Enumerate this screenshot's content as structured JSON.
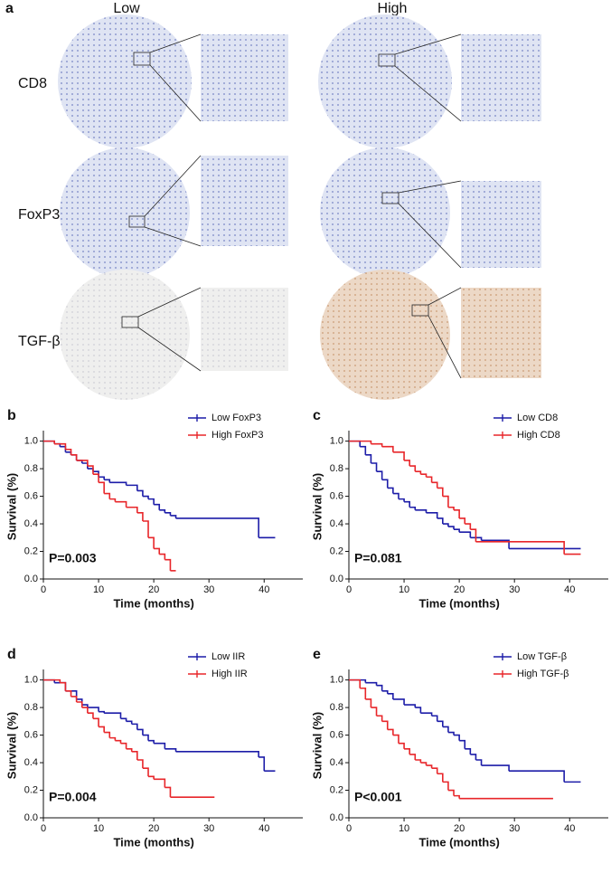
{
  "panel_a": {
    "label": "a",
    "columns": [
      "Low",
      "High"
    ],
    "rows": [
      "CD8",
      "FoxP3",
      "TGF-β"
    ]
  },
  "chart_data": [
    {
      "type": "step",
      "label": "b",
      "xlabel": "Time (months)",
      "ylabel": "Survival (%)",
      "annotation": "P=0.003",
      "xlim": [
        0,
        47
      ],
      "xticks": [
        0,
        10,
        20,
        30,
        40
      ],
      "ylim": [
        0,
        1.05
      ],
      "yticks": [
        {
          "value": 0,
          "label": "0.0"
        },
        {
          "value": 0.2,
          "label": "0.2"
        },
        {
          "value": 0.4,
          "label": "0.4"
        },
        {
          "value": 0.6,
          "label": "0.6"
        },
        {
          "value": 0.8,
          "label": "0.8"
        },
        {
          "value": 1,
          "label": "1.0"
        }
      ],
      "series": [
        {
          "name": "Low FoxP3",
          "color": "#1c1ca8",
          "x": [
            0,
            2,
            3,
            4,
            5,
            6,
            7,
            8,
            9,
            10,
            11,
            12,
            15,
            17,
            18,
            19,
            20,
            21,
            22,
            23,
            24,
            39,
            42
          ],
          "values": [
            1,
            0.98,
            0.96,
            0.92,
            0.9,
            0.86,
            0.84,
            0.8,
            0.78,
            0.74,
            0.72,
            0.7,
            0.68,
            0.64,
            0.6,
            0.58,
            0.54,
            0.5,
            0.48,
            0.46,
            0.44,
            0.3,
            0.3
          ]
        },
        {
          "name": "High FoxP3",
          "color": "#e8262a",
          "x": [
            0,
            2,
            4,
            5,
            6,
            8,
            9,
            10,
            11,
            12,
            13,
            15,
            17,
            18,
            19,
            20,
            21,
            22,
            23,
            24
          ],
          "values": [
            1,
            0.98,
            0.94,
            0.9,
            0.86,
            0.82,
            0.76,
            0.7,
            0.62,
            0.58,
            0.56,
            0.52,
            0.48,
            0.42,
            0.3,
            0.22,
            0.18,
            0.14,
            0.06,
            0.06
          ]
        }
      ]
    },
    {
      "type": "step",
      "label": "c",
      "xlabel": "Time (months)",
      "ylabel": "Survival (%)",
      "annotation": "P=0.081",
      "xlim": [
        0,
        47
      ],
      "xticks": [
        0,
        10,
        20,
        30,
        40
      ],
      "ylim": [
        0,
        1.05
      ],
      "yticks": [
        {
          "value": 0,
          "label": "0.0"
        },
        {
          "value": 0.2,
          "label": "0.2"
        },
        {
          "value": 0.4,
          "label": "0.4"
        },
        {
          "value": 0.6,
          "label": "0.6"
        },
        {
          "value": 0.8,
          "label": "0.8"
        },
        {
          "value": 1,
          "label": "1.0"
        }
      ],
      "series": [
        {
          "name": "Low CD8",
          "color": "#1c1ca8",
          "x": [
            0,
            2,
            3,
            4,
            5,
            6,
            7,
            8,
            9,
            10,
            11,
            12,
            14,
            16,
            17,
            18,
            19,
            20,
            22,
            24,
            29,
            42
          ],
          "values": [
            1,
            0.96,
            0.9,
            0.84,
            0.78,
            0.72,
            0.66,
            0.62,
            0.58,
            0.56,
            0.52,
            0.5,
            0.48,
            0.44,
            0.4,
            0.38,
            0.36,
            0.34,
            0.3,
            0.28,
            0.22,
            0.22
          ]
        },
        {
          "name": "High CD8",
          "color": "#e8262a",
          "x": [
            0,
            4,
            6,
            8,
            10,
            11,
            12,
            13,
            14,
            15,
            16,
            17,
            18,
            19,
            20,
            21,
            22,
            23,
            39,
            42
          ],
          "values": [
            1,
            0.98,
            0.96,
            0.92,
            0.86,
            0.82,
            0.78,
            0.76,
            0.74,
            0.7,
            0.66,
            0.6,
            0.52,
            0.5,
            0.44,
            0.4,
            0.36,
            0.27,
            0.18,
            0.18
          ]
        }
      ]
    },
    {
      "type": "step",
      "label": "d",
      "xlabel": "Time (months)",
      "ylabel": "Survival (%)",
      "annotation": "P=0.004",
      "xlim": [
        0,
        47
      ],
      "xticks": [
        0,
        10,
        20,
        30,
        40
      ],
      "ylim": [
        0,
        1.05
      ],
      "yticks": [
        {
          "value": 0,
          "label": "0.0"
        },
        {
          "value": 0.2,
          "label": "0.2"
        },
        {
          "value": 0.4,
          "label": "0.4"
        },
        {
          "value": 0.6,
          "label": "0.6"
        },
        {
          "value": 0.8,
          "label": "0.8"
        },
        {
          "value": 1,
          "label": "1.0"
        }
      ],
      "series": [
        {
          "name": "Low IIR",
          "color": "#1c1ca8",
          "x": [
            0,
            2,
            4,
            6,
            7,
            8,
            10,
            11,
            14,
            15,
            16,
            17,
            18,
            19,
            20,
            22,
            24,
            39,
            40,
            42
          ],
          "values": [
            1,
            0.98,
            0.92,
            0.86,
            0.82,
            0.8,
            0.77,
            0.76,
            0.72,
            0.7,
            0.68,
            0.64,
            0.6,
            0.56,
            0.54,
            0.5,
            0.48,
            0.44,
            0.34,
            0.34
          ]
        },
        {
          "name": "High IIR",
          "color": "#e8262a",
          "x": [
            0,
            3,
            4,
            5,
            6,
            7,
            8,
            9,
            10,
            11,
            12,
            13,
            14,
            15,
            16,
            17,
            18,
            19,
            20,
            22,
            23,
            31
          ],
          "values": [
            1,
            0.98,
            0.92,
            0.88,
            0.84,
            0.8,
            0.76,
            0.72,
            0.66,
            0.62,
            0.58,
            0.56,
            0.54,
            0.5,
            0.48,
            0.42,
            0.36,
            0.3,
            0.28,
            0.22,
            0.15,
            0.15
          ]
        }
      ]
    },
    {
      "type": "step",
      "label": "e",
      "xlabel": "Time (months)",
      "ylabel": "Survival (%)",
      "annotation": "P<0.001",
      "xlim": [
        0,
        47
      ],
      "xticks": [
        0,
        10,
        20,
        30,
        40
      ],
      "ylim": [
        0,
        1.05
      ],
      "yticks": [
        {
          "value": 0,
          "label": "0.0"
        },
        {
          "value": 0.2,
          "label": "0.2"
        },
        {
          "value": 0.4,
          "label": "0.4"
        },
        {
          "value": 0.6,
          "label": "0.6"
        },
        {
          "value": 0.8,
          "label": "0.8"
        },
        {
          "value": 1,
          "label": "1.0"
        }
      ],
      "series": [
        {
          "name": "Low TGF-β",
          "color": "#1c1ca8",
          "x": [
            0,
            3,
            5,
            6,
            7,
            8,
            10,
            12,
            13,
            15,
            16,
            17,
            18,
            19,
            20,
            21,
            22,
            23,
            24,
            29,
            39,
            42
          ],
          "values": [
            1,
            0.98,
            0.96,
            0.92,
            0.9,
            0.86,
            0.82,
            0.8,
            0.76,
            0.74,
            0.7,
            0.66,
            0.62,
            0.6,
            0.56,
            0.5,
            0.46,
            0.42,
            0.38,
            0.34,
            0.26,
            0.26
          ]
        },
        {
          "name": "High TGF-β",
          "color": "#e8262a",
          "x": [
            0,
            2,
            3,
            4,
            5,
            6,
            7,
            8,
            9,
            10,
            11,
            12,
            13,
            14,
            15,
            16,
            17,
            18,
            19,
            20,
            37
          ],
          "values": [
            1,
            0.94,
            0.86,
            0.8,
            0.74,
            0.7,
            0.64,
            0.6,
            0.54,
            0.5,
            0.46,
            0.42,
            0.4,
            0.38,
            0.36,
            0.32,
            0.26,
            0.2,
            0.16,
            0.14,
            0.14
          ]
        }
      ]
    }
  ]
}
